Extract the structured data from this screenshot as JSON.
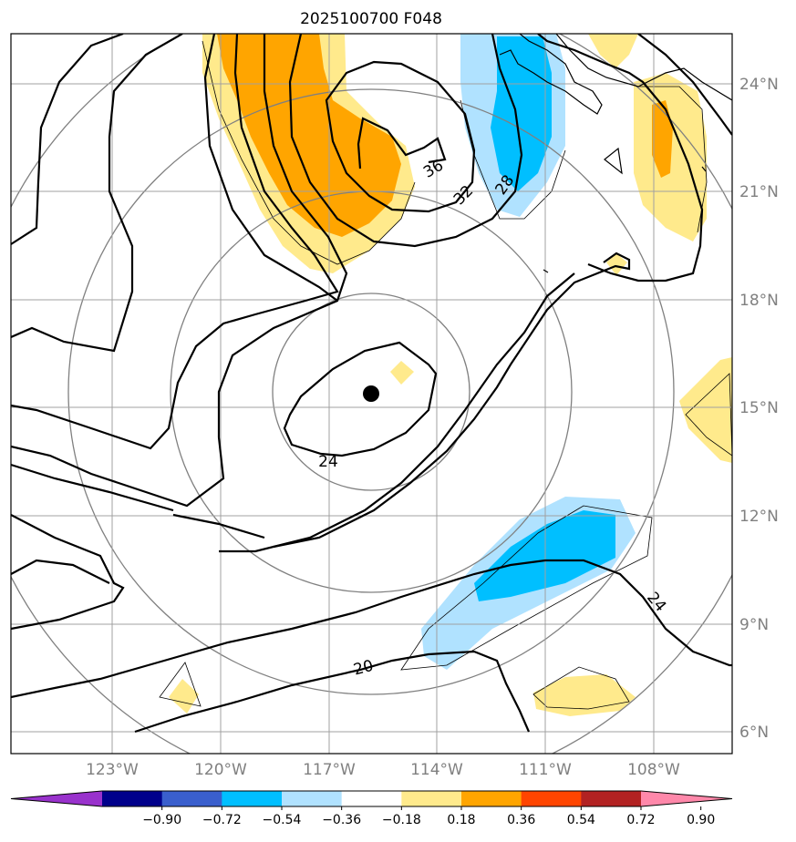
{
  "title": "2025100700 F048",
  "map": {
    "lat_ticks": [
      "24°N",
      "21°N",
      "18°N",
      "15°N",
      "12°N",
      "9°N",
      "6°N"
    ],
    "lon_ticks": [
      "123°W",
      "120°W",
      "117°W",
      "114°W",
      "111°W",
      "108°W"
    ],
    "contour_labels": [
      "36",
      "32",
      "28",
      "24",
      "24",
      "20"
    ],
    "storm_marker": "black-dot",
    "colors": {
      "gridline": "#a0a0a0",
      "range_ring": "#808080",
      "contour": "#000000",
      "coast": "#000000"
    }
  },
  "colorbar": {
    "ticks": [
      "−0.90",
      "−0.72",
      "−0.54",
      "−0.36",
      "−0.18",
      "0.18",
      "0.36",
      "0.54",
      "0.72",
      "0.90"
    ],
    "colors": [
      "#9932cc",
      "#00008b",
      "#3a5fcd",
      "#00bfff",
      "#b0e2ff",
      "#ffffff",
      "#ffea8c",
      "#ffa500",
      "#ff4500",
      "#b22222",
      "#ff88aa"
    ]
  }
}
